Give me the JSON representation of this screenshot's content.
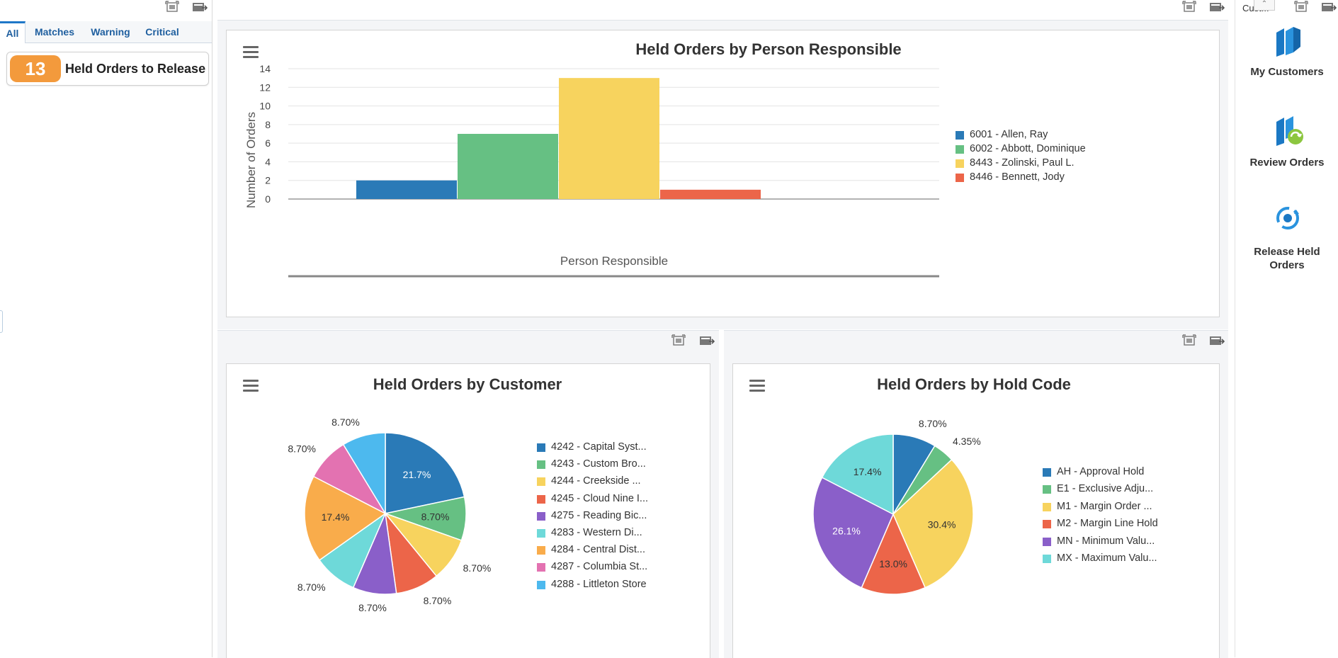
{
  "left_panel": {
    "tabs": [
      {
        "label": "All",
        "active": true
      },
      {
        "label": "Matches"
      },
      {
        "label": "Warning"
      },
      {
        "label": "Critical"
      }
    ],
    "alert": {
      "count": "13",
      "label": "Held Orders to Release"
    }
  },
  "top_right": {
    "truncated_label": "Cust..."
  },
  "springboard": {
    "items": [
      {
        "label": "My Customers",
        "icon": "books-icon"
      },
      {
        "label": "Review Orders",
        "icon": "review-books-icon"
      },
      {
        "label": "Release Held Orders",
        "icon": "release-cycle-icon"
      }
    ]
  },
  "colors": {
    "blue": "#2a7ab7",
    "green": "#66c083",
    "yellow": "#f7d35e",
    "red": "#ec6549",
    "purple": "#8a5fc9",
    "teal": "#6ed9d9",
    "orange": "#f9ac4b",
    "pink": "#e372b1",
    "skyblue": "#4db9ee",
    "accent": "#1f5f9f",
    "badge": "#f39a3c"
  },
  "chart_data": [
    {
      "type": "bar",
      "title": "Held Orders by Person Responsible",
      "xlabel": "Person Responsible",
      "ylabel": "Number of Orders",
      "ylim": [
        0,
        14
      ],
      "yticks": [
        "0",
        "2",
        "4",
        "6",
        "8",
        "10",
        "12",
        "14"
      ],
      "grid": true,
      "legend_position": "right",
      "series": [
        {
          "name": "6001 - Allen, Ray",
          "value": 2,
          "color": "#2a7ab7"
        },
        {
          "name": "6002 - Abbott, Dominique",
          "value": 7,
          "color": "#66c083"
        },
        {
          "name": "8443 - Zolinski, Paul L.",
          "value": 13,
          "color": "#f7d35e"
        },
        {
          "name": "8446 - Bennett, Jody",
          "value": 1,
          "color": "#ec6549"
        }
      ]
    },
    {
      "type": "pie",
      "title": "Held Orders by Customer",
      "legend_position": "right",
      "slices": [
        {
          "name": "4242 - Capital Syst...",
          "value": 21.7,
          "label": "21.7%",
          "color": "#2a7ab7"
        },
        {
          "name": "4243 - Custom Bro...",
          "value": 8.7,
          "label": "8.70%",
          "color": "#66c083"
        },
        {
          "name": "4244 - Creekside ...",
          "value": 8.7,
          "label": "8.70%",
          "color": "#f7d35e"
        },
        {
          "name": "4245 - Cloud Nine I...",
          "value": 8.7,
          "label": "8.70%",
          "color": "#ec6549"
        },
        {
          "name": "4275 - Reading Bic...",
          "value": 8.7,
          "label": "8.70%",
          "color": "#8a5fc9"
        },
        {
          "name": "4283 - Western Di...",
          "value": 8.7,
          "label": "8.70%",
          "color": "#6ed9d9"
        },
        {
          "name": "4284 - Central Dist...",
          "value": 17.4,
          "label": "17.4%",
          "color": "#f9ac4b"
        },
        {
          "name": "4287 - Columbia St...",
          "value": 8.7,
          "label": "8.70%",
          "color": "#e372b1"
        },
        {
          "name": "4288 - Littleton Store",
          "value": 8.7,
          "label": "8.70%",
          "color": "#4db9ee"
        }
      ]
    },
    {
      "type": "pie",
      "title": "Held Orders by Hold Code",
      "legend_position": "right",
      "slices": [
        {
          "name": "AH - Approval Hold",
          "value": 8.7,
          "label": "8.70%",
          "color": "#2a7ab7"
        },
        {
          "name": "E1 - Exclusive Adju...",
          "value": 4.35,
          "label": "4.35%",
          "color": "#66c083"
        },
        {
          "name": "M1 - Margin Order ...",
          "value": 30.4,
          "label": "30.4%",
          "color": "#f7d35e"
        },
        {
          "name": "M2 - Margin Line Hold",
          "value": 13.0,
          "label": "13.0%",
          "color": "#ec6549"
        },
        {
          "name": "MN - Minimum Valu...",
          "value": 26.1,
          "label": "26.1%",
          "color": "#8a5fc9"
        },
        {
          "name": "MX - Maximum Valu...",
          "value": 17.4,
          "label": "17.4%",
          "color": "#6ed9d9"
        }
      ]
    }
  ]
}
